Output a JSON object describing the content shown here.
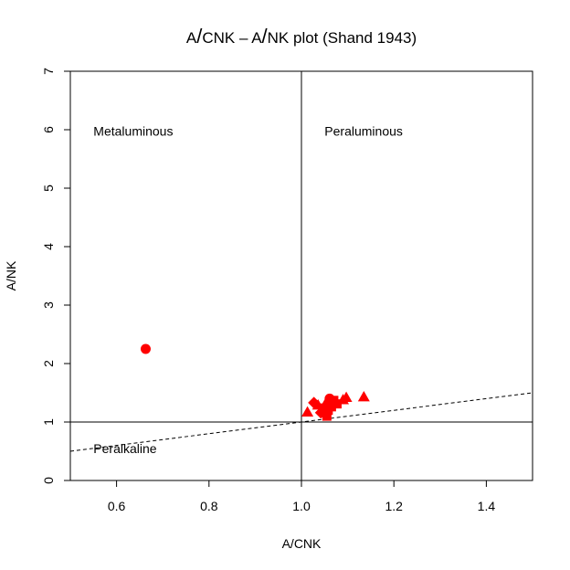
{
  "chart_data": {
    "type": "scatter",
    "title": "A/CNK – A/NK plot (Shand 1943)",
    "title_parts": [
      "A",
      "/",
      "CNK",
      " – ",
      "A",
      "/",
      "NK plot (Shand 1943)"
    ],
    "xlabel": "A/CNK",
    "ylabel": "A/NK",
    "xlim": [
      0.5,
      1.5
    ],
    "ylim": [
      0,
      7
    ],
    "x_ticks": [
      0.6,
      0.8,
      1.0,
      1.2,
      1.4
    ],
    "x_tick_labels": [
      "0.6",
      "0.8",
      "1.0",
      "1.2",
      "1.4"
    ],
    "y_ticks": [
      0,
      1,
      2,
      3,
      4,
      5,
      6,
      7
    ],
    "y_tick_labels": [
      "0",
      "1",
      "2",
      "3",
      "4",
      "5",
      "6",
      "7"
    ],
    "grid": false,
    "reference_lines": [
      {
        "type": "vertical",
        "x": 1.0,
        "style": "solid"
      },
      {
        "type": "horizontal",
        "y": 1.0,
        "style": "solid"
      },
      {
        "type": "line",
        "points": [
          [
            0.5,
            0.5
          ],
          [
            1.0,
            1.0
          ],
          [
            1.2,
            1.2
          ],
          [
            1.5,
            1.5
          ]
        ],
        "style": "dashed"
      }
    ],
    "field_labels": [
      {
        "text": "Metaluminous",
        "x": 0.55,
        "y": 5.9
      },
      {
        "text": "Peraluminous",
        "x": 1.05,
        "y": 5.9
      },
      {
        "text": "Peralkaline",
        "x": 0.55,
        "y": 0.47
      }
    ],
    "marker_color": "#ff0000",
    "points": [
      {
        "x": 0.663,
        "y": 2.25,
        "marker": "circle"
      },
      {
        "x": 1.013,
        "y": 1.17,
        "marker": "triangle"
      },
      {
        "x": 1.027,
        "y": 1.33,
        "marker": "diamond"
      },
      {
        "x": 1.036,
        "y": 1.29,
        "marker": "triangle"
      },
      {
        "x": 1.042,
        "y": 1.16,
        "marker": "diamond"
      },
      {
        "x": 1.047,
        "y": 1.24,
        "marker": "square"
      },
      {
        "x": 1.052,
        "y": 1.31,
        "marker": "triangle"
      },
      {
        "x": 1.055,
        "y": 1.1,
        "marker": "square"
      },
      {
        "x": 1.058,
        "y": 1.2,
        "marker": "square"
      },
      {
        "x": 1.061,
        "y": 1.4,
        "marker": "circle"
      },
      {
        "x": 1.065,
        "y": 1.26,
        "marker": "square"
      },
      {
        "x": 1.07,
        "y": 1.37,
        "marker": "square"
      },
      {
        "x": 1.077,
        "y": 1.31,
        "marker": "square"
      },
      {
        "x": 1.09,
        "y": 1.38,
        "marker": "triangle"
      },
      {
        "x": 1.097,
        "y": 1.42,
        "marker": "triangle"
      },
      {
        "x": 1.135,
        "y": 1.43,
        "marker": "triangle"
      }
    ]
  }
}
